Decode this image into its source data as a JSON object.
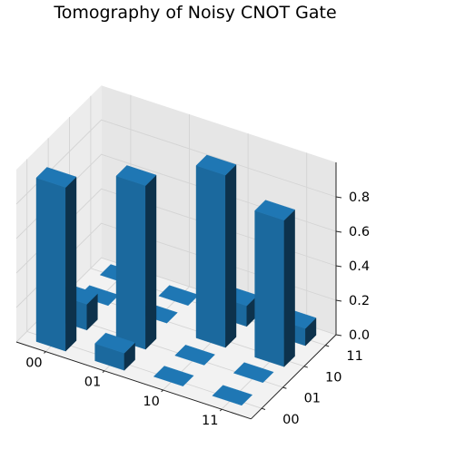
{
  "chart_data": {
    "type": "bar3d",
    "title": "Tomography of Noisy CNOT Gate",
    "x_categories": [
      "00",
      "01",
      "10",
      "11"
    ],
    "y_categories": [
      "00",
      "01",
      "10",
      "11"
    ],
    "z_ticks": [
      "0.0",
      "0.2",
      "0.4",
      "0.6",
      "0.8"
    ],
    "zlim": [
      0,
      1.0
    ],
    "color": "#1f77b4",
    "grid": true,
    "values": [
      [
        0.95,
        0.15,
        0.02,
        0.02
      ],
      [
        0.1,
        0.95,
        0.03,
        0.01
      ],
      [
        0.02,
        0.02,
        1.0,
        0.12
      ],
      [
        0.02,
        0.03,
        0.85,
        0.1
      ]
    ]
  }
}
